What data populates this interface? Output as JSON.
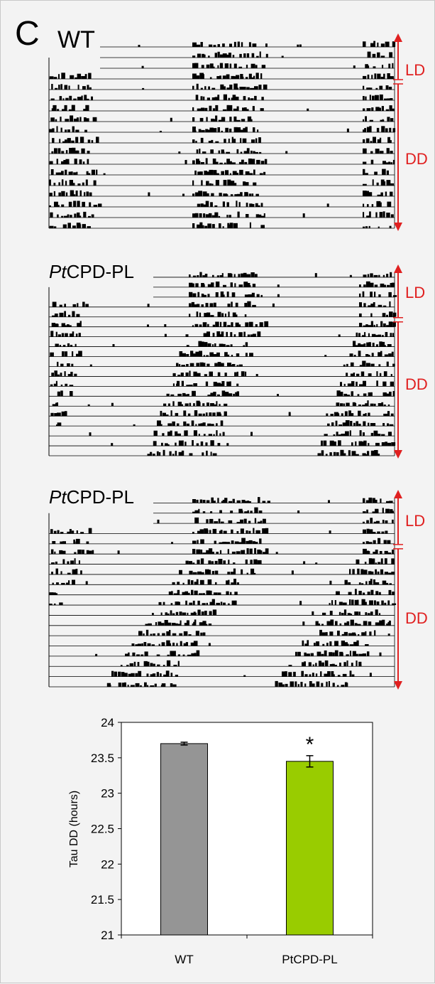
{
  "panel_label": "C",
  "actograms": [
    {
      "title_prefix": "",
      "title_main": "WT",
      "ld_label": "LD",
      "dd_label": "DD",
      "ld_days": 4,
      "dd_days": 14
    },
    {
      "title_prefix": "Pt",
      "title_main": "CPD-PL",
      "ld_label": "LD",
      "dd_label": "DD",
      "ld_days": 5,
      "dd_days": 14
    },
    {
      "title_prefix": "Pt",
      "title_main": "CPD-PL",
      "ld_label": "LD",
      "dd_label": "DD",
      "ld_days": 5,
      "dd_days": 14
    }
  ],
  "colors": {
    "accent_red": "#e02020",
    "bar_wt": "#959595",
    "bar_mutant": "#99cc00"
  },
  "chart_data": {
    "type": "bar",
    "categories": [
      "WT",
      "PtCPD-PL"
    ],
    "values": [
      23.7,
      23.45
    ],
    "errors": [
      0.02,
      0.08
    ],
    "ylabel": "Tau DD (hours)",
    "ylim": [
      21,
      24
    ],
    "yticks": [
      "21",
      "21.5",
      "22",
      "22.5",
      "23",
      "23.5",
      "24"
    ],
    "significance": [
      "",
      "*"
    ],
    "grid": false
  }
}
